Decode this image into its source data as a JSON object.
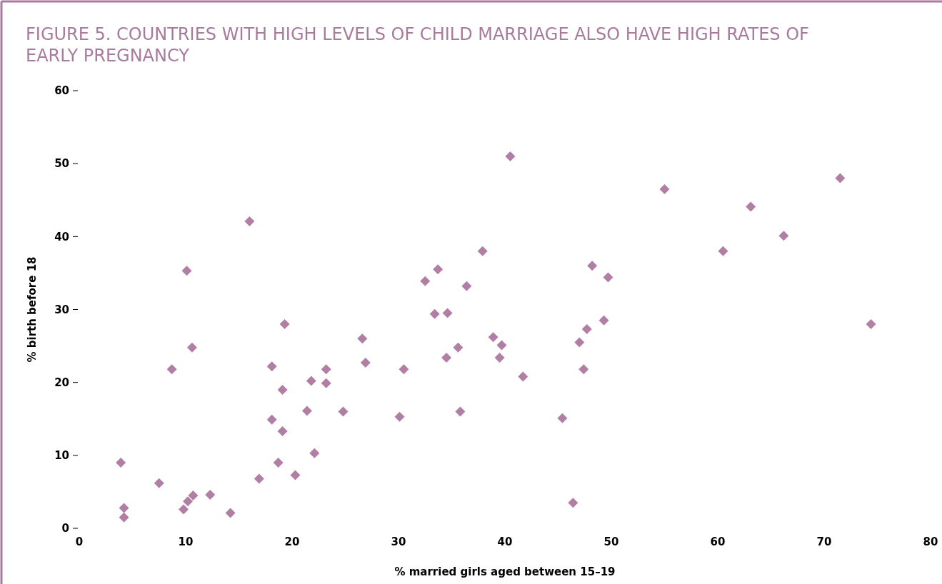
{
  "chart_data": {
    "type": "scatter",
    "title": "FIGURE 5. COUNTRIES WITH HIGH LEVELS OF CHILD MARRIAGE ALSO HAVE HIGH RATES OF EARLY PREGNANCY",
    "xlabel": "% married girls aged between 15–19",
    "ylabel": "% birth before 18",
    "marker": "diamond",
    "grid": false,
    "xlim": [
      0,
      80
    ],
    "xticks": [
      0,
      10,
      20,
      30,
      40,
      50,
      60,
      70,
      80
    ],
    "ylim": [
      0,
      60
    ],
    "yticks": [
      0,
      10,
      20,
      30,
      40,
      50,
      60
    ],
    "series": [
      {
        "color": "#b07fa3",
        "x": [
          3.9,
          4.2,
          4.2,
          7.5,
          8.7,
          9.8,
          10.2,
          10.1,
          10.6,
          10.7,
          12.3,
          14.2,
          16.0,
          16.9,
          18.1,
          18.1,
          18.7,
          19.1,
          19.1,
          19.3,
          20.3,
          21.4,
          21.8,
          22.1,
          23.2,
          23.2,
          24.8,
          26.6,
          26.9,
          30.1,
          30.5,
          32.5,
          33.4,
          33.7,
          34.5,
          34.6,
          35.6,
          35.8,
          36.4,
          37.9,
          38.9,
          39.5,
          39.7,
          40.5,
          41.7,
          45.4,
          46.4,
          47.0,
          47.4,
          47.7,
          48.2,
          49.3,
          49.7,
          55.0,
          60.5,
          63.1,
          66.2,
          71.5,
          74.4
        ],
        "values": [
          9.0,
          2.8,
          1.5,
          6.2,
          21.8,
          2.6,
          3.7,
          35.3,
          24.8,
          4.5,
          4.6,
          2.1,
          42.1,
          6.8,
          22.2,
          14.9,
          9.0,
          13.3,
          19.0,
          28.0,
          7.3,
          16.1,
          20.2,
          10.3,
          21.8,
          19.9,
          16.0,
          26.0,
          22.7,
          15.3,
          21.8,
          33.9,
          29.4,
          35.5,
          23.4,
          29.5,
          24.8,
          16.0,
          33.2,
          38.0,
          26.2,
          23.4,
          25.1,
          51.0,
          20.8,
          15.1,
          3.5,
          25.5,
          21.8,
          27.3,
          36.0,
          28.5,
          34.4,
          46.5,
          38.0,
          44.1,
          40.1,
          48.0,
          28.0
        ]
      }
    ]
  }
}
